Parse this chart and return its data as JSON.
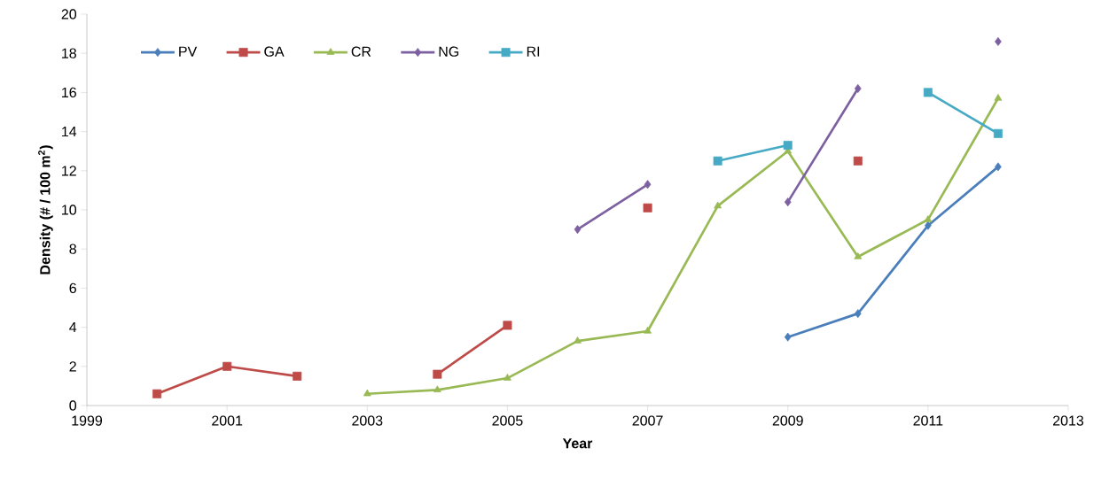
{
  "chart_data": {
    "type": "line",
    "xlabel": "Year",
    "ylabel": "Density (# / 100 m$^{2}$)",
    "x": [
      2000,
      2001,
      2002,
      2003,
      2004,
      2005,
      2006,
      2007,
      2008,
      2009,
      2010,
      2011,
      2012
    ],
    "series": [
      {
        "name": "PV",
        "color": "#4a7ebb",
        "marker": "diamond",
        "values": [
          null,
          null,
          null,
          null,
          null,
          null,
          null,
          null,
          null,
          3.5,
          4.7,
          9.2,
          12.2
        ]
      },
      {
        "name": "GA",
        "color": "#be4b48",
        "marker": "square",
        "values": [
          0.6,
          2.0,
          1.5,
          null,
          1.6,
          4.1,
          null,
          10.1,
          null,
          null,
          12.5,
          null,
          null
        ]
      },
      {
        "name": "CR",
        "color": "#98b954",
        "marker": "triangle",
        "values": [
          null,
          null,
          null,
          0.6,
          0.8,
          1.4,
          3.3,
          3.8,
          10.2,
          13.0,
          7.6,
          9.5,
          15.7
        ]
      },
      {
        "name": "NG",
        "color": "#7d60a0",
        "marker": "diamond",
        "values": [
          null,
          null,
          null,
          null,
          null,
          null,
          9.0,
          11.3,
          null,
          10.4,
          16.2,
          null,
          18.6
        ]
      },
      {
        "name": "RI",
        "color": "#46aac5",
        "marker": "square",
        "values": [
          null,
          null,
          null,
          null,
          null,
          null,
          null,
          null,
          12.5,
          13.3,
          null,
          16.0,
          13.9
        ]
      }
    ],
    "xlim": [
      1999,
      2013
    ],
    "xticks": [
      1999,
      2001,
      2003,
      2005,
      2007,
      2009,
      2011,
      2013
    ],
    "ylim": [
      0,
      20
    ],
    "yticks": [
      0,
      2,
      4,
      6,
      8,
      10,
      12,
      14,
      16,
      18,
      20
    ],
    "grid": false,
    "legend": "top left",
    "line_style": "solid"
  }
}
